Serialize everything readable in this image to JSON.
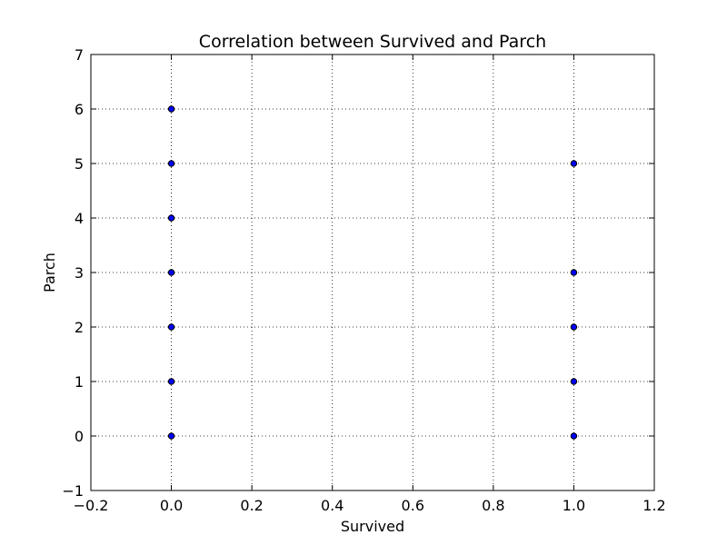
{
  "chart_data": {
    "type": "scatter",
    "title": "Correlation between Survived and Parch",
    "xlabel": "Survived",
    "ylabel": "Parch",
    "xlim": [
      -0.2,
      1.2
    ],
    "ylim": [
      -1,
      7
    ],
    "xticks": [
      -0.2,
      0.0,
      0.2,
      0.4,
      0.6,
      0.8,
      1.0,
      1.2
    ],
    "xtick_labels": [
      "−0.2",
      "0.0",
      "0.2",
      "0.4",
      "0.6",
      "0.8",
      "1.0",
      "1.2"
    ],
    "yticks": [
      -1,
      0,
      1,
      2,
      3,
      4,
      5,
      6,
      7
    ],
    "ytick_labels": [
      "−1",
      "0",
      "1",
      "2",
      "3",
      "4",
      "5",
      "6",
      "7"
    ],
    "grid": true,
    "marker_color": "#0000ff",
    "marker_edge_color": "#000000",
    "series": [
      {
        "points": [
          [
            0,
            0
          ],
          [
            0,
            1
          ],
          [
            0,
            2
          ],
          [
            0,
            3
          ],
          [
            0,
            4
          ],
          [
            0,
            5
          ],
          [
            0,
            6
          ],
          [
            1,
            0
          ],
          [
            1,
            1
          ],
          [
            1,
            2
          ],
          [
            1,
            3
          ],
          [
            1,
            5
          ]
        ]
      }
    ]
  }
}
